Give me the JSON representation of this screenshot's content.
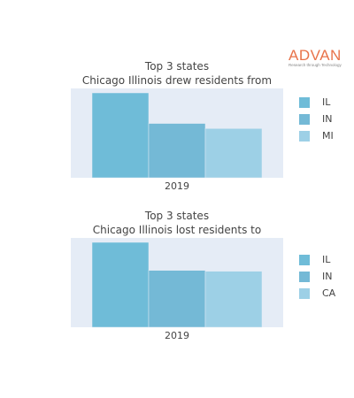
{
  "logo": {
    "text": "ADVAN",
    "tagline": "Research through Technology",
    "color": "#e8734a"
  },
  "chart_data": [
    {
      "type": "bar",
      "title_lines": [
        "Top 3 states",
        "Chicago Illinois drew residents from"
      ],
      "categories": [
        "2019"
      ],
      "series": [
        {
          "name": "IL",
          "values": [
            1.0
          ],
          "color": "#6fbcd8"
        },
        {
          "name": "IN",
          "values": [
            0.64
          ],
          "color": "#74b9d6"
        },
        {
          "name": "MI",
          "values": [
            0.58
          ],
          "color": "#9dd0e6"
        }
      ],
      "grid": false,
      "legend_position": "right",
      "yaxis_labels": false
    },
    {
      "type": "bar",
      "title_lines": [
        "Top 3 states",
        "Chicago Illinois lost residents to"
      ],
      "categories": [
        "2019"
      ],
      "series": [
        {
          "name": "IL",
          "values": [
            1.0
          ],
          "color": "#6fbcd8"
        },
        {
          "name": "IN",
          "values": [
            0.67
          ],
          "color": "#74b9d6"
        },
        {
          "name": "CA",
          "values": [
            0.66
          ],
          "color": "#9dd0e6"
        }
      ],
      "grid": false,
      "legend_position": "right",
      "yaxis_labels": false
    }
  ]
}
